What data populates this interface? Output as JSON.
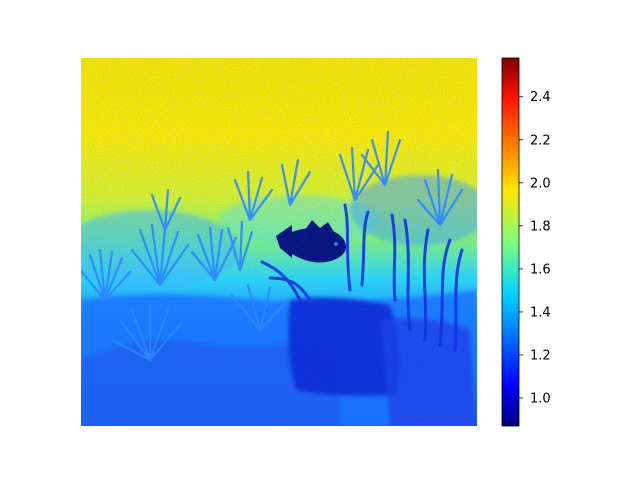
{
  "chart_data": {
    "type": "heatmap",
    "title": "",
    "xlabel": "",
    "ylabel": "",
    "description": "",
    "colormap": "jet",
    "value_range": [
      0.87,
      2.58
    ],
    "colorbar": {
      "ticks": [
        1.0,
        1.2,
        1.4,
        1.6,
        1.8,
        2.0,
        2.2,
        2.4
      ],
      "tick_labels": [
        "1.0",
        "1.2",
        "1.4",
        "1.6",
        "1.8",
        "2.0",
        "2.2",
        "2.4"
      ]
    },
    "axes_visible": false,
    "colorbar_position": "right"
  }
}
